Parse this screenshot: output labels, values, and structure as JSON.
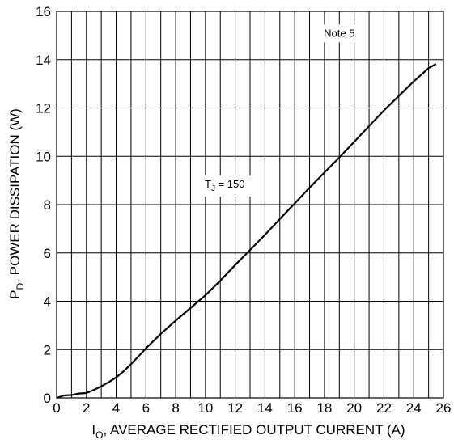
{
  "chart_data": {
    "type": "line",
    "xlabel": {
      "main": "I",
      "sub": "O",
      "rest": ", AVERAGE RECTIFIED OUTPUT CURRENT (A)"
    },
    "ylabel": {
      "main": "P",
      "sub": "D",
      "rest": ", POWER DISSIPATION (W)"
    },
    "xlim": [
      0,
      26
    ],
    "ylim": [
      0,
      16
    ],
    "xticks": [
      0,
      2,
      4,
      6,
      8,
      10,
      12,
      14,
      16,
      18,
      20,
      22,
      24,
      26
    ],
    "yticks": [
      0,
      2,
      4,
      6,
      8,
      10,
      12,
      14,
      16
    ],
    "x_minor_grid_step": 1,
    "y_grid_step": 2,
    "grid": true,
    "series": [
      {
        "x": [
          0,
          0.5,
          1,
          1.5,
          2,
          2.5,
          3,
          3.5,
          4,
          4.5,
          5,
          5.5,
          6,
          7,
          8,
          9,
          10,
          11,
          12,
          13,
          14,
          15,
          16,
          17,
          18,
          19,
          20,
          21,
          22,
          23,
          24,
          25,
          25.5
        ],
        "y": [
          0,
          0.1,
          0.12,
          0.18,
          0.2,
          0.33,
          0.48,
          0.65,
          0.85,
          1.1,
          1.4,
          1.72,
          2.05,
          2.65,
          3.2,
          3.72,
          4.25,
          4.85,
          5.5,
          6.12,
          6.75,
          7.4,
          8.05,
          8.7,
          9.33,
          9.95,
          10.6,
          11.25,
          11.9,
          12.5,
          13.1,
          13.65,
          13.82
        ]
      }
    ],
    "annotations": [
      {
        "id": "note5",
        "text": "Note 5",
        "x": 19,
        "y": 14.95
      },
      {
        "id": "tj",
        "main": "T",
        "sub": "J",
        "rest": " = 150",
        "x": 11.3,
        "y": 8.7
      }
    ]
  }
}
